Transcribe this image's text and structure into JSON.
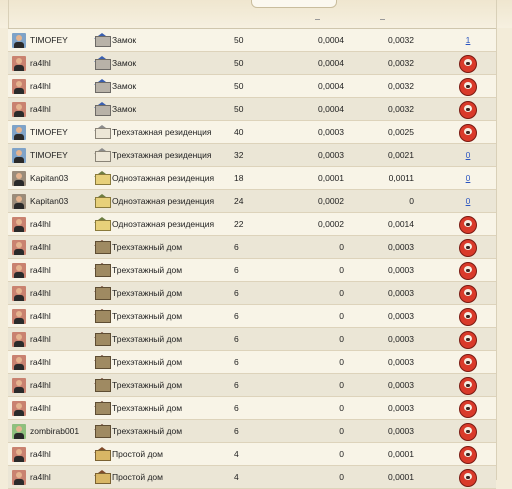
{
  "rows": [
    {
      "player": "TIMOFEY",
      "avatar": "blue",
      "building_icon": "castle-icon",
      "building": "Замок",
      "v1": "50",
      "v2": "0,0004",
      "v3": "0,0032",
      "action": {
        "type": "link",
        "label": "1"
      }
    },
    {
      "player": "ra4lhl",
      "avatar": "red",
      "building_icon": "castle-icon",
      "building": "Замок",
      "v1": "50",
      "v2": "0,0004",
      "v3": "0,0032",
      "action": {
        "type": "boar"
      }
    },
    {
      "player": "ra4lhl",
      "avatar": "red",
      "building_icon": "castle-icon",
      "building": "Замок",
      "v1": "50",
      "v2": "0,0004",
      "v3": "0,0032",
      "action": {
        "type": "boar"
      }
    },
    {
      "player": "ra4lhl",
      "avatar": "red",
      "building_icon": "castle-icon",
      "building": "Замок",
      "v1": "50",
      "v2": "0,0004",
      "v3": "0,0032",
      "action": {
        "type": "boar"
      }
    },
    {
      "player": "TIMOFEY",
      "avatar": "blue",
      "building_icon": "residence-3-icon",
      "building": "Трехэтажная резиденция",
      "v1": "40",
      "v2": "0,0003",
      "v3": "0,0025",
      "action": {
        "type": "boar"
      }
    },
    {
      "player": "TIMOFEY",
      "avatar": "blue",
      "building_icon": "residence-3-icon",
      "building": "Трехэтажная резиденция",
      "v1": "32",
      "v2": "0,0003",
      "v3": "0,0021",
      "action": {
        "type": "link",
        "label": "0"
      }
    },
    {
      "player": "Kapitan03",
      "avatar": "grey",
      "building_icon": "residence-1-icon",
      "building": "Одноэтажная резиденция",
      "v1": "18",
      "v2": "0,0001",
      "v3": "0,0011",
      "action": {
        "type": "link",
        "label": "0"
      }
    },
    {
      "player": "Kapitan03",
      "avatar": "grey",
      "building_icon": "residence-1-icon",
      "building": "Одноэтажная резиденция",
      "v1": "24",
      "v2": "0,0002",
      "v3": "0",
      "action": {
        "type": "link",
        "label": "0"
      }
    },
    {
      "player": "ra4lhl",
      "avatar": "red",
      "building_icon": "residence-1-icon",
      "building": "Одноэтажная резиденция",
      "v1": "22",
      "v2": "0,0002",
      "v3": "0,0014",
      "action": {
        "type": "boar"
      }
    },
    {
      "player": "ra4lhl",
      "avatar": "red",
      "building_icon": "house-3-icon",
      "building": "Трехэтажный дом",
      "v1": "6",
      "v2": "0",
      "v3": "0,0003",
      "action": {
        "type": "boar"
      }
    },
    {
      "player": "ra4lhl",
      "avatar": "red",
      "building_icon": "house-3-icon",
      "building": "Трехэтажный дом",
      "v1": "6",
      "v2": "0",
      "v3": "0,0003",
      "action": {
        "type": "boar"
      }
    },
    {
      "player": "ra4lhl",
      "avatar": "red",
      "building_icon": "house-3-icon",
      "building": "Трехэтажный дом",
      "v1": "6",
      "v2": "0",
      "v3": "0,0003",
      "action": {
        "type": "boar"
      }
    },
    {
      "player": "ra4lhl",
      "avatar": "red",
      "building_icon": "house-3-icon",
      "building": "Трехэтажный дом",
      "v1": "6",
      "v2": "0",
      "v3": "0,0003",
      "action": {
        "type": "boar"
      }
    },
    {
      "player": "ra4lhl",
      "avatar": "red",
      "building_icon": "house-3-icon",
      "building": "Трехэтажный дом",
      "v1": "6",
      "v2": "0",
      "v3": "0,0003",
      "action": {
        "type": "boar"
      }
    },
    {
      "player": "ra4lhl",
      "avatar": "red",
      "building_icon": "house-3-icon",
      "building": "Трехэтажный дом",
      "v1": "6",
      "v2": "0",
      "v3": "0,0003",
      "action": {
        "type": "boar"
      }
    },
    {
      "player": "ra4lhl",
      "avatar": "red",
      "building_icon": "house-3-icon",
      "building": "Трехэтажный дом",
      "v1": "6",
      "v2": "0",
      "v3": "0,0003",
      "action": {
        "type": "boar"
      }
    },
    {
      "player": "ra4lhl",
      "avatar": "red",
      "building_icon": "house-3-icon",
      "building": "Трехэтажный дом",
      "v1": "6",
      "v2": "0",
      "v3": "0,0003",
      "action": {
        "type": "boar"
      }
    },
    {
      "player": "zombirab001",
      "avatar": "green",
      "building_icon": "house-3-icon",
      "building": "Трехэтажный дом",
      "v1": "6",
      "v2": "0",
      "v3": "0,0003",
      "action": {
        "type": "boar"
      }
    },
    {
      "player": "ra4lhl",
      "avatar": "red",
      "building_icon": "simple-house-icon",
      "building": "Простой дом",
      "v1": "4",
      "v2": "0",
      "v3": "0,0001",
      "action": {
        "type": "boar"
      }
    },
    {
      "player": "ra4lhl",
      "avatar": "red",
      "building_icon": "simple-house-icon",
      "building": "Простой дом",
      "v1": "4",
      "v2": "0",
      "v3": "0,0001",
      "action": {
        "type": "boar"
      }
    }
  ]
}
